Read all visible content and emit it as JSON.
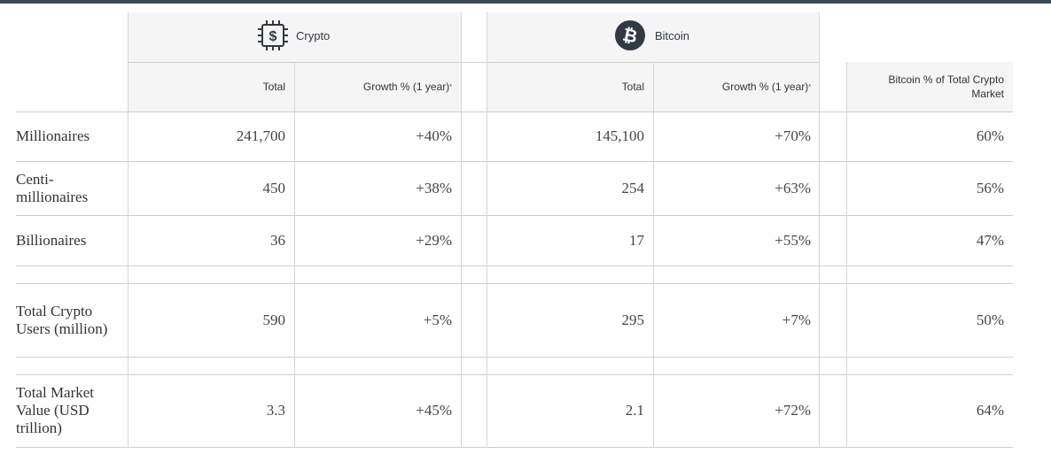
{
  "groups": {
    "crypto": {
      "label": "Crypto",
      "icon": "crypto-chip-dollar-icon",
      "icon_glyph": "$"
    },
    "bitcoin": {
      "label": "Bitcoin",
      "icon": "bitcoin-logo-icon",
      "icon_glyph": "₿"
    }
  },
  "columns": {
    "crypto_total": "Total",
    "crypto_growth": "Growth % (1 year)",
    "crypto_growth_note": "*",
    "bitcoin_total": "Total",
    "bitcoin_growth": "Growth % (1 year)",
    "bitcoin_growth_note": "*",
    "bitcoin_share": "Bitcoin % of Total Crypto Market"
  },
  "rows": [
    {
      "label": "Millionaires",
      "crypto_total": "241,700",
      "crypto_growth": "+40%",
      "bitcoin_total": "145,100",
      "bitcoin_growth": "+70%",
      "bitcoin_share": "60%"
    },
    {
      "label": "Centi-millionaires",
      "crypto_total": "450",
      "crypto_growth": "+38%",
      "bitcoin_total": "254",
      "bitcoin_growth": "+63%",
      "bitcoin_share": "56%"
    },
    {
      "label": "Billionaires",
      "crypto_total": "36",
      "crypto_growth": "+29%",
      "bitcoin_total": "17",
      "bitcoin_growth": "+55%",
      "bitcoin_share": "47%"
    },
    {
      "label": "Total Crypto Users (million)",
      "crypto_total": "590",
      "crypto_growth": "+5%",
      "bitcoin_total": "295",
      "bitcoin_growth": "+7%",
      "bitcoin_share": "50%"
    },
    {
      "label": "Total Market Value (USD trillion)",
      "crypto_total": "3.3",
      "crypto_growth": "+45%",
      "bitcoin_total": "2.1",
      "bitcoin_growth": "+72%",
      "bitcoin_share": "64%"
    }
  ],
  "colors": {
    "header_bg": "#f5f5f5",
    "rule": "#cfcfcf",
    "top_bar": "#3d4a55",
    "bitcoin_badge": "#2f3a44"
  }
}
